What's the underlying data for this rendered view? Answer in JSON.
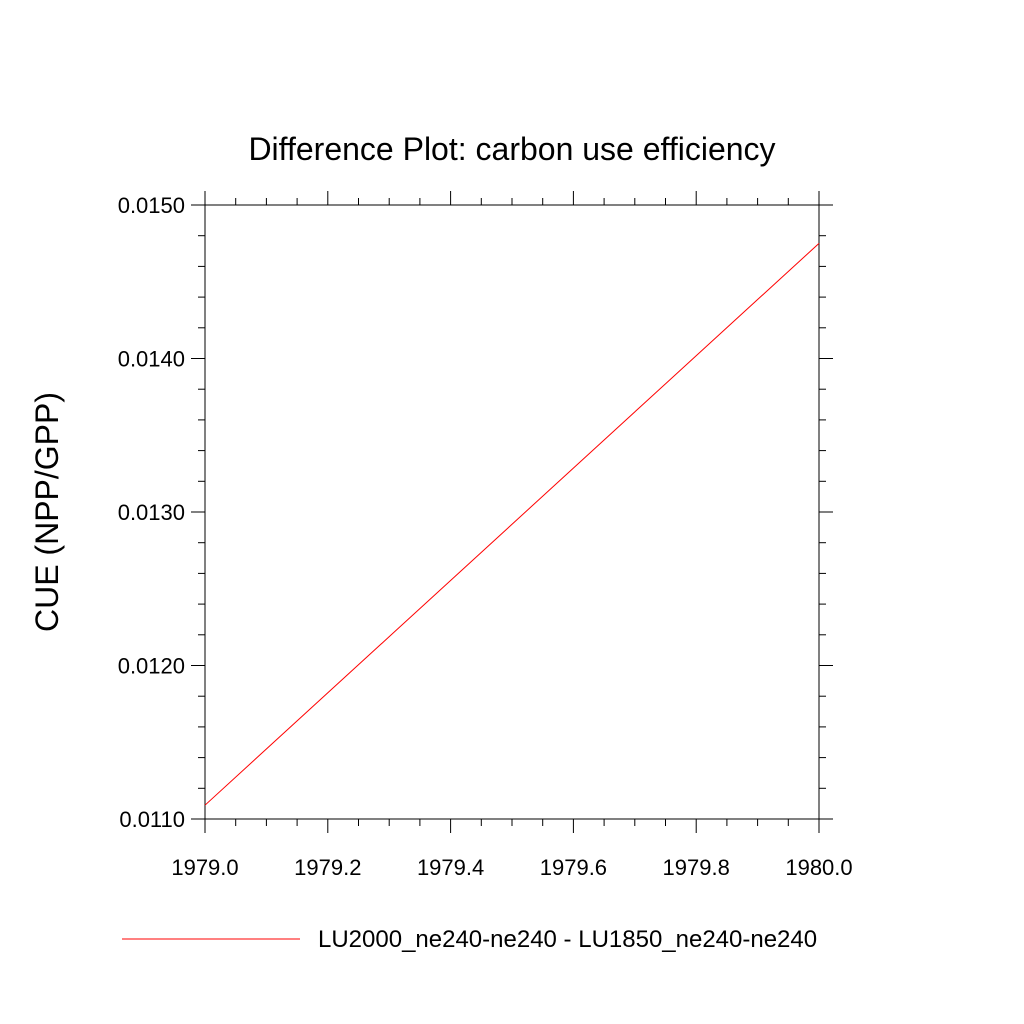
{
  "chart_data": {
    "type": "line",
    "title": "Difference Plot: carbon use efficiency",
    "xlabel": "",
    "ylabel": "CUE  (NPP/GPP)",
    "xlim": [
      1979.0,
      1980.0
    ],
    "ylim": [
      0.011,
      0.015
    ],
    "x_ticks": [
      1979.0,
      1979.2,
      1979.4,
      1979.6,
      1979.8,
      1980.0
    ],
    "x_tick_labels": [
      "1979.0",
      "1979.2",
      "1979.4",
      "1979.6",
      "1979.8",
      "1980.0"
    ],
    "y_ticks": [
      0.011,
      0.012,
      0.013,
      0.014,
      0.015
    ],
    "y_tick_labels": [
      "0.0110",
      "0.0120",
      "0.0130",
      "0.0140",
      "0.0150"
    ],
    "grid": false,
    "legend_position": "bottom",
    "series": [
      {
        "name": "LU2000_ne240-ne240 - LU1850_ne240-ne240",
        "color": "#ff0000",
        "x": [
          1979.0,
          1980.0
        ],
        "y": [
          0.01109,
          0.01475
        ]
      }
    ]
  }
}
